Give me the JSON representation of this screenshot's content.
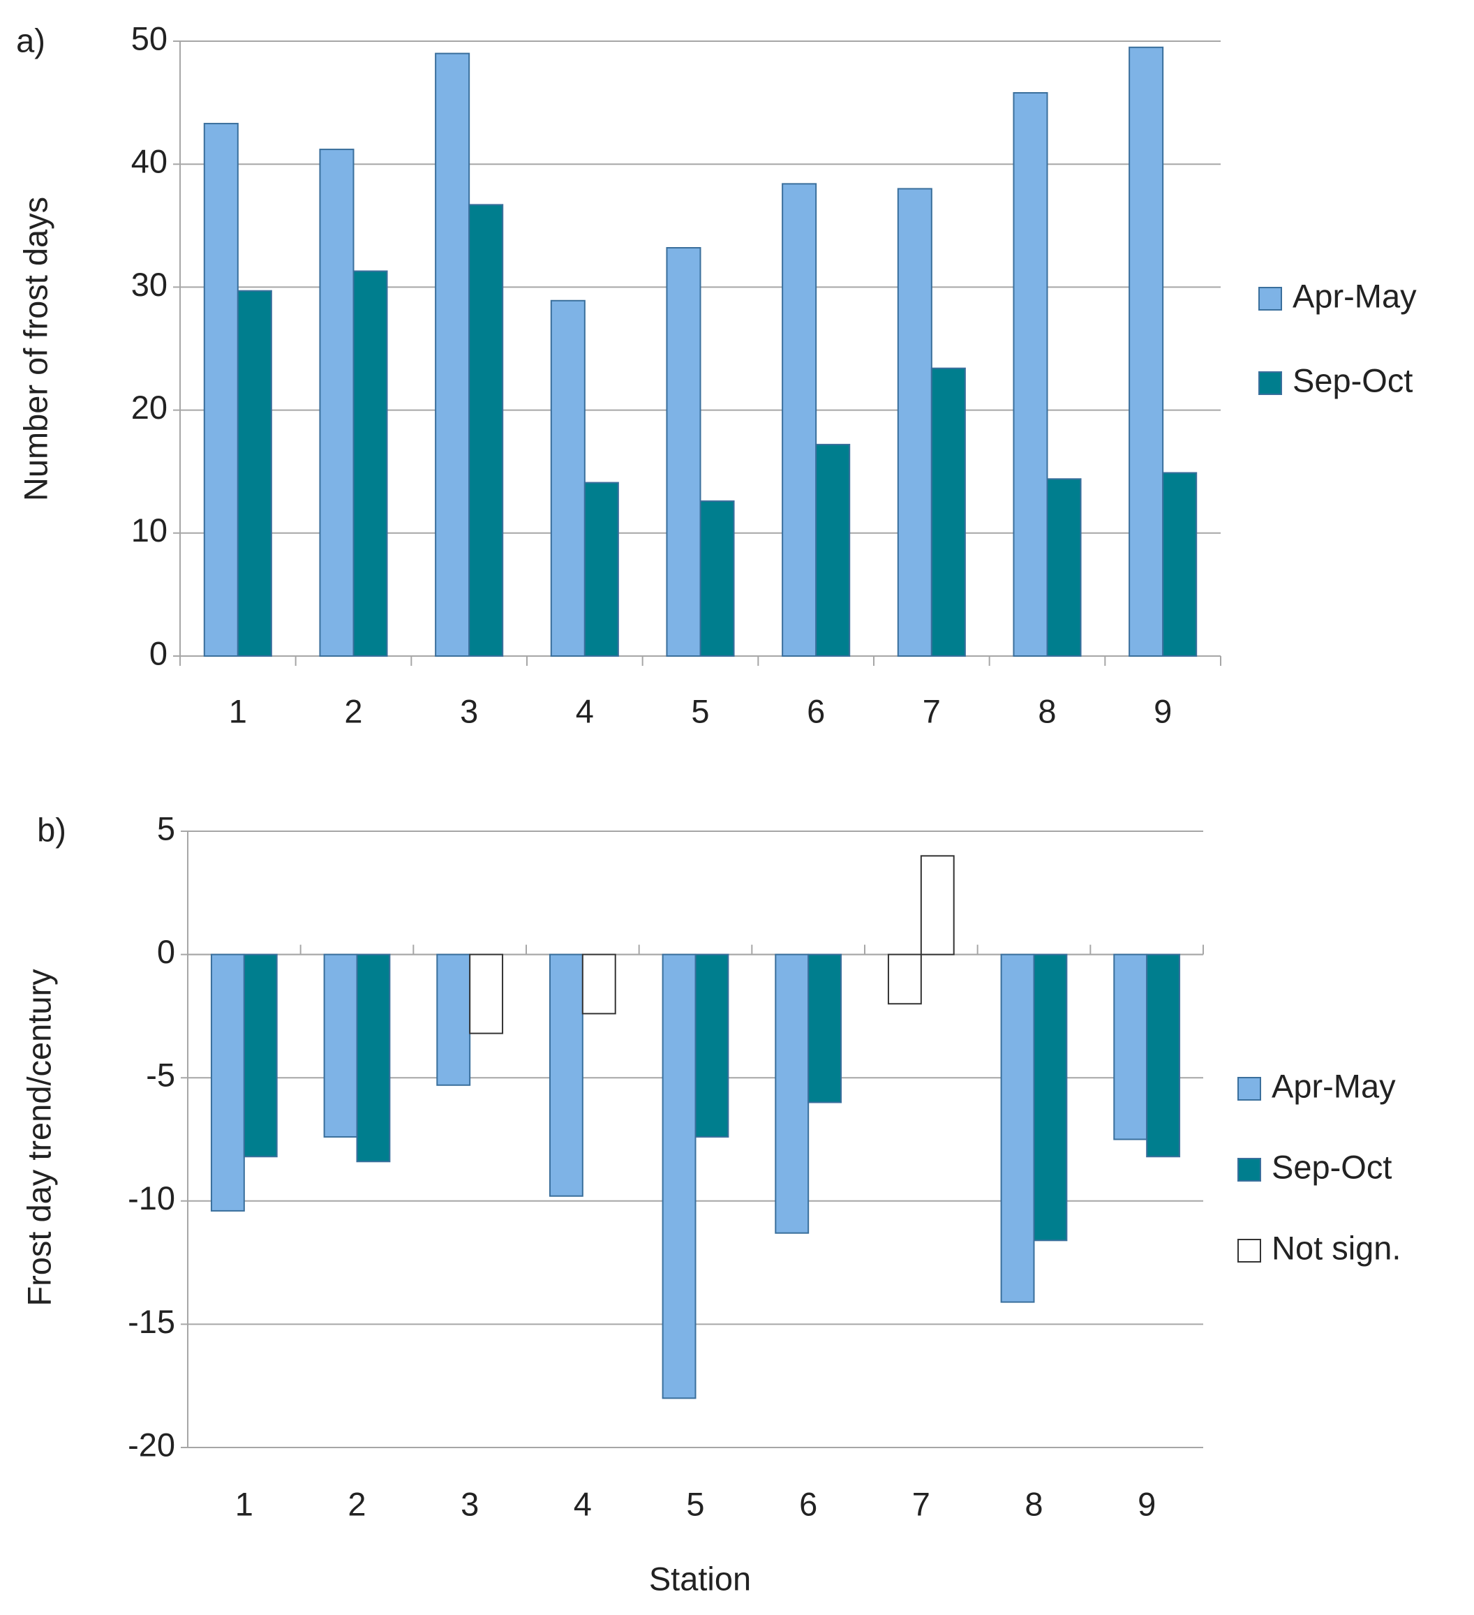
{
  "chart_data": [
    {
      "type": "bar",
      "panel_label": "a)",
      "y_label": "Number of frost days",
      "categories": [
        "1",
        "2",
        "3",
        "4",
        "5",
        "6",
        "7",
        "8",
        "9"
      ],
      "series": [
        {
          "name": "Apr-May",
          "color": "#7eb3e6",
          "values": [
            43.3,
            41.2,
            49,
            28.9,
            33.2,
            38.4,
            38,
            45.8,
            49.5
          ]
        },
        {
          "name": "Sep-Oct",
          "color": "#007e8e",
          "values": [
            29.7,
            31.3,
            36.7,
            14.1,
            12.6,
            17.2,
            23.4,
            14.4,
            14.9
          ]
        }
      ],
      "ylim": [
        0,
        50
      ],
      "yticks": [
        0,
        10,
        20,
        30,
        40,
        50
      ],
      "grid": true,
      "legend": "right"
    },
    {
      "type": "bar",
      "panel_label": "b)",
      "y_label": "Frost day trend/century",
      "x_label": "Station",
      "categories": [
        "1",
        "2",
        "3",
        "4",
        "5",
        "6",
        "7",
        "8",
        "9"
      ],
      "series": [
        {
          "name": "Apr-May",
          "color": "#7eb3e6",
          "values": [
            -10.4,
            -7.4,
            -5.3,
            -9.8,
            -18,
            -11.3,
            -2,
            -14.1,
            -7.5
          ],
          "colors": [
            "#7eb3e6",
            "#7eb3e6",
            "#7eb3e6",
            "#7eb3e6",
            "#7eb3e6",
            "#7eb3e6",
            "#ffffff",
            "#7eb3e6",
            "#7eb3e6"
          ]
        },
        {
          "name": "Sep-Oct",
          "color": "#007e8e",
          "values": [
            -8.2,
            -8.4,
            -3.2,
            -2.4,
            -7.4,
            -6,
            4,
            -11.6,
            -8.2
          ],
          "colors": [
            "#007e8e",
            "#007e8e",
            "#ffffff",
            "#ffffff",
            "#007e8e",
            "#007e8e",
            "#ffffff",
            "#007e8e",
            "#007e8e"
          ]
        }
      ],
      "legend_extra": [
        {
          "name": "Not sign.",
          "color": "#ffffff"
        }
      ],
      "ylim": [
        -20,
        5
      ],
      "yticks": [
        -20,
        -15,
        -10,
        -5,
        0,
        5
      ],
      "grid": true,
      "legend": "right"
    }
  ]
}
